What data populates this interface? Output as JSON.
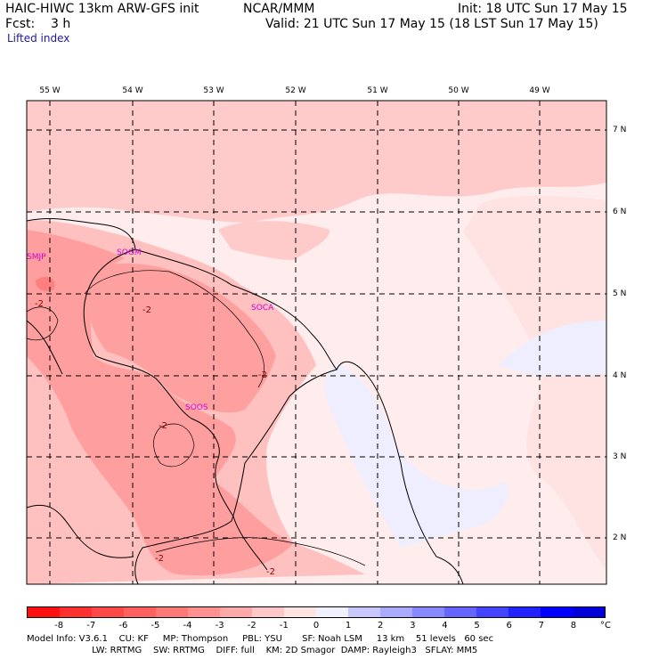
{
  "header": {
    "model_title": "HAIC-HIWC 13km ARW-GFS init",
    "center": "NCAR/MMM",
    "init": "Init: 18 UTC Sun 17 May 15",
    "fcst": "Fcst:    3 h",
    "valid": "Valid: 21 UTC Sun 17 May 15 (18 LST Sun 17 May 15)",
    "field": "Lifted index"
  },
  "longitude_labels": [
    "55 W",
    "54 W",
    "53 W",
    "52 W",
    "51 W",
    "50 W",
    "49 W"
  ],
  "latitude_labels": [
    "7 N",
    "6 N",
    "5 N",
    "4 N",
    "3 N",
    "2 N"
  ],
  "stations": [
    "SMJP",
    "SOGM",
    "SOCA",
    "SOOS"
  ],
  "contour_labels": [
    "-2",
    "-2",
    "-2",
    "-2",
    "-2",
    "-2"
  ],
  "colorbar": {
    "unit": "°C",
    "ticks": [
      "-8",
      "-7",
      "-6",
      "-5",
      "-4",
      "-3",
      "-2",
      "-1",
      "0",
      "1",
      "2",
      "3",
      "4",
      "5",
      "6",
      "7",
      "8"
    ],
    "colors": [
      "#ff1010",
      "#ff3030",
      "#ff4848",
      "#ff6060",
      "#ff7878",
      "#ff9090",
      "#ffaaaa",
      "#ffc8c8",
      "#ffe4e4",
      "#f0f0ff",
      "#c8c8ff",
      "#aaaaff",
      "#8888ff",
      "#6666ff",
      "#4444ff",
      "#2222ff",
      "#0000ff",
      "#0000d8"
    ]
  },
  "footer": {
    "line1": "Model Info: V3.6.1    CU: KF     MP: Thompson     PBL: YSU       SF: Noah LSM     13 km    51 levels   60 sec",
    "line2": "                       LW: RRTMG    SW: RRTMG    DIFF: full    KM: 2D Smagor  DAMP: Rayleigh3   SFLAY: MM5"
  },
  "colors": {
    "li_minus1": "#ffe4e4",
    "li_minus2": "#ffc8c8",
    "li_minus3": "#ffaaaa",
    "li_0": "#ffeeee",
    "li_plus1": "#f0f0ff",
    "station": "#d000d0",
    "contour_label": "#8b0000"
  }
}
